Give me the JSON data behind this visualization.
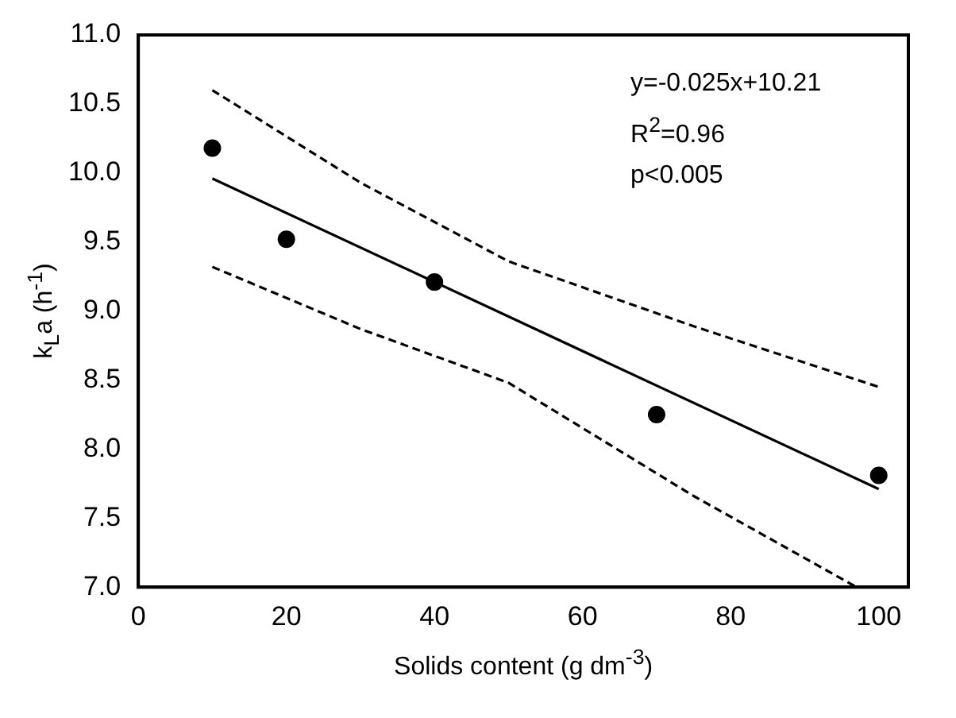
{
  "chart_data": {
    "type": "scatter",
    "xlabel": "Solids content (g dm$^{-3}$)",
    "ylabel": "k$_{L}$a (h$^{-1}$)",
    "annotations": [
      "y=-0.025x+10.21",
      "R$^{2}$=0.96",
      "p<0.005"
    ],
    "series": [
      {
        "type": "scatter",
        "color": "#000000",
        "marker": "circle",
        "x": [
          10,
          20,
          40,
          70,
          100
        ],
        "values": [
          10.18,
          9.52,
          9.21,
          8.25,
          7.81
        ]
      },
      {
        "type": "line",
        "color": "#000000",
        "line_style": "solid",
        "marker": "none",
        "x": [
          10,
          100
        ],
        "values": [
          9.96,
          7.71
        ]
      },
      {
        "type": "line",
        "color": "#000000",
        "line_style": "dashed",
        "marker": "none",
        "x": [
          10,
          30,
          50,
          75,
          100
        ],
        "values": [
          10.6,
          9.93,
          9.36,
          8.89,
          8.45
        ]
      },
      {
        "type": "line",
        "color": "#000000",
        "line_style": "dashed",
        "marker": "none",
        "x": [
          10,
          30,
          50,
          75,
          97
        ],
        "values": [
          9.32,
          8.87,
          8.48,
          7.66,
          7.0
        ]
      }
    ],
    "xlim": [
      0,
      104
    ],
    "xticks": [
      0,
      20,
      40,
      60,
      80,
      100
    ],
    "ylim": [
      7,
      11
    ],
    "yticks": [
      {
        "value": 7,
        "label": "7.0"
      },
      {
        "value": 7.5,
        "label": "7.5"
      },
      {
        "value": 8,
        "label": "8.0"
      },
      {
        "value": 8.5,
        "label": "8.5"
      },
      {
        "value": 9,
        "label": "9.0"
      },
      {
        "value": 9.5,
        "label": "9.5"
      },
      {
        "value": 10,
        "label": "10.0"
      },
      {
        "value": 10.5,
        "label": "10.5"
      },
      {
        "value": 11,
        "label": "11.0"
      }
    ],
    "grid": false,
    "legend": false
  }
}
